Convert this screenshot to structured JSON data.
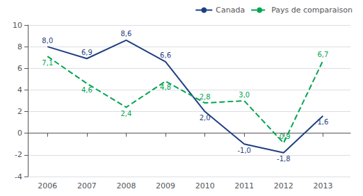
{
  "chart_data": {
    "type": "line",
    "x": [
      2006,
      2007,
      2008,
      2009,
      2010,
      2011,
      2012,
      2013
    ],
    "xlim": [
      2005.5,
      2013.7
    ],
    "xticks": [
      2006,
      2007,
      2008,
      2009,
      2010,
      2011,
      2012,
      2013
    ],
    "ylim": [
      -4,
      10
    ],
    "yticks": [
      -4,
      -2,
      0,
      2,
      4,
      6,
      8,
      10
    ],
    "grid": "y",
    "legend": "upper right",
    "data_labels": true,
    "series": [
      {
        "name": "Canada",
        "color": "#1f3f82",
        "line_style": "solid",
        "values": [
          8.0,
          6.9,
          8.6,
          6.6,
          2.0,
          -1.0,
          -1.8,
          1.6
        ],
        "value_labels": [
          "8,0",
          "6,9",
          "8,6",
          "6,6",
          "2,0",
          "-1,0",
          "-1,8",
          "1,6"
        ]
      },
      {
        "name": "Pays de comparaison",
        "color": "#00a650",
        "line_style": "dashed",
        "values": [
          7.1,
          4.6,
          2.4,
          4.8,
          2.8,
          3.0,
          -0.9,
          6.7
        ],
        "value_labels": [
          "7,1",
          "4,6",
          "2,4",
          "4,8",
          "2,8",
          "3,0",
          "-0,9",
          "6,7"
        ]
      }
    ]
  }
}
